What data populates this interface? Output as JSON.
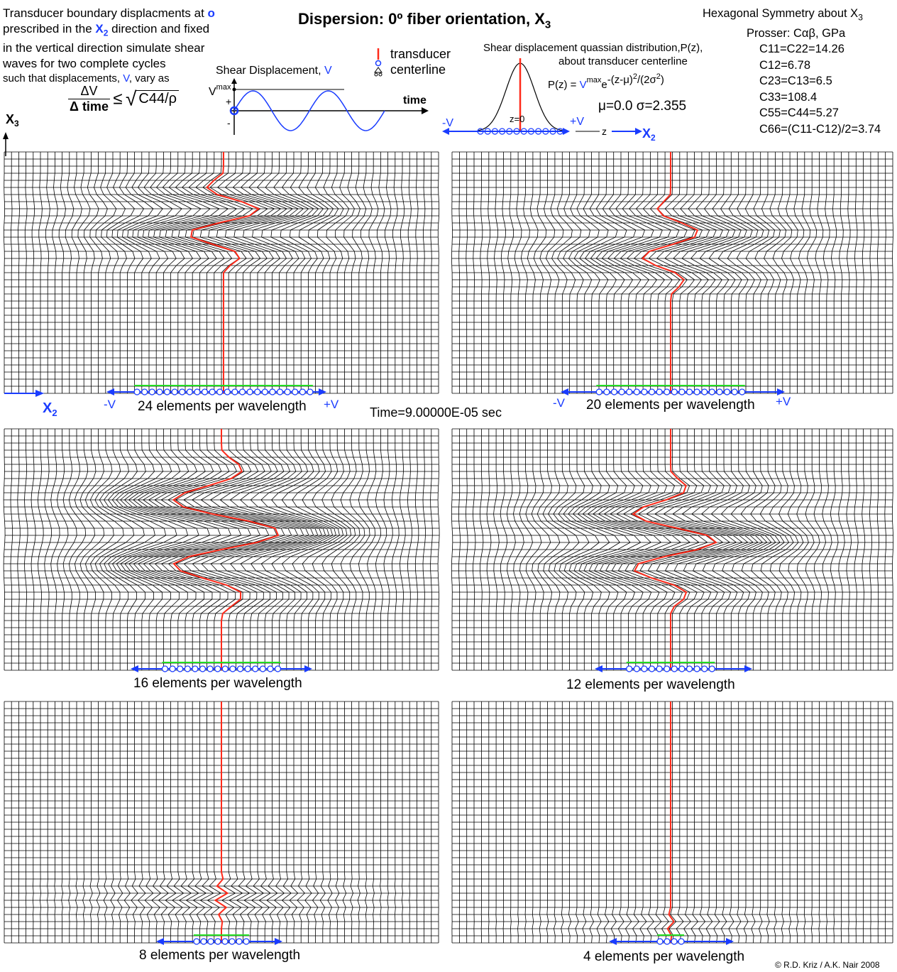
{
  "intro": {
    "line1a": "Transducer boundary displacments at ",
    "line1b": "o",
    "line2a": "prescribed in the ",
    "line2b": "X",
    "line2c": "2",
    "line2d": " direction and fixed",
    "line3": "in the vertical direction simulate shear",
    "line4": "waves for two complete cycles",
    "line5a": "such that displacements, ",
    "line5b": "V",
    "line5c": ", vary as",
    "formula_num": "ΔV",
    "formula_den": "Δ time",
    "formula_rel": "≤",
    "formula_root_body": "C44/ρ"
  },
  "title": {
    "main": "Dispersion: 0º  fiber orientation, X",
    "sub": "3"
  },
  "properties": {
    "line1a": "Hexagonal Symmetry about X",
    "line1b": "3",
    "line2": "Prosser: Cαβ, GPa",
    "c11": "C11=C22=14.26",
    "c12": "C12=6.78",
    "c23": "C23=C13=6.5",
    "c33": "C33=108.4",
    "c55": "C55=C44=5.27",
    "c66": "C66=(C11-C12)/2=3.74"
  },
  "shear_plot": {
    "label_a": "Shear Displacement, ",
    "label_b": "V",
    "vmax": "V",
    "vmax_sup": "max",
    "plus": "+",
    "minus": "-",
    "time": "time"
  },
  "legend": {
    "transducer": "transducer",
    "centerline": "centerline"
  },
  "gaussian": {
    "title1": "Shear displacement quassian distribution,P(z),",
    "title2": "about transducer centerline",
    "eq_a": "P(z) = ",
    "eq_b": "V",
    "eq_c": "max",
    "eq_d": "e",
    "eq_e": "-(z-μ)",
    "eq_f": "2",
    "eq_g": "/(2σ",
    "eq_h": "2",
    "eq_i": ")",
    "params": "μ=0.0   σ=2.355",
    "z0": "z=0",
    "neg_v": "-V",
    "pos_v": "+V",
    "z": "z",
    "x2": "X",
    "x2sub": "2"
  },
  "axes": {
    "x3": "X",
    "x3sub": "3",
    "x2": "X",
    "x2sub": "2"
  },
  "panels": [
    {
      "caption": "24 elements per wavelength",
      "neg": "-V",
      "pos": "+V",
      "elements": 24
    },
    {
      "caption": "20 elements per wavelength",
      "neg": "-V",
      "pos": "+V",
      "elements": 20
    },
    {
      "caption": "16 elements per wavelength",
      "neg": "",
      "pos": "",
      "elements": 16
    },
    {
      "caption": "12 elements per wavelength",
      "neg": "",
      "pos": "",
      "elements": 12
    },
    {
      "caption": "8 elements per wavelength",
      "neg": "",
      "pos": "",
      "elements": 8
    },
    {
      "caption": "4 elements per wavelength",
      "neg": "",
      "pos": "",
      "elements": 4
    }
  ],
  "time": "Time=9.00000E-05 sec",
  "copyright": "© R.D. Kriz / A.K. Nair 2008",
  "colors": {
    "accent_blue": "#1a3cff",
    "centerline_red": "#ff2a1a",
    "boundary_green": "#22dd22",
    "mesh": "#000000"
  }
}
